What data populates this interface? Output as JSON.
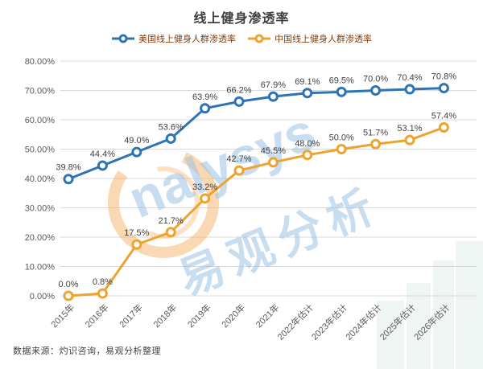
{
  "title": "线上健身渗透率",
  "source": "数据来源：灼识咨询，易观分析整理",
  "watermark": {
    "text_latin": "nalysys",
    "text_cn": "易观分析",
    "text_color": "#9cc3e5",
    "logo_color": "#f4b168"
  },
  "colors": {
    "us_series": "#2e74b5",
    "cn_series": "#efa32f",
    "grid": "#d9d9d9",
    "axis_text": "#595959",
    "data_label": "#3f3f3f",
    "legend_text": "#843c0c",
    "skyline": "#dcebe3"
  },
  "chart_data": {
    "type": "line",
    "title": "线上健身渗透率",
    "categories": [
      "2015年",
      "2016年",
      "2017年",
      "2018年",
      "2019年",
      "2020年",
      "2021年",
      "2022年估计",
      "2023年估计",
      "2024年估计",
      "2025年估计",
      "2026年估计"
    ],
    "series": [
      {
        "name": "美国线上健身人群渗透率",
        "color": "#2e74b5",
        "values": [
          39.8,
          44.4,
          49.0,
          53.6,
          63.9,
          66.2,
          67.9,
          69.1,
          69.5,
          70.0,
          70.4,
          70.8
        ]
      },
      {
        "name": "中国线上健身人群渗透率",
        "color": "#efa32f",
        "values": [
          0.0,
          0.8,
          17.5,
          21.7,
          33.2,
          42.7,
          45.5,
          48.0,
          50.0,
          51.7,
          53.1,
          57.4
        ]
      }
    ],
    "xlabel": "",
    "ylabel": "",
    "ylim": [
      0,
      80
    ],
    "ytick_step": 10,
    "yticks": [
      "0.00%",
      "10.00%",
      "20.00%",
      "30.00%",
      "40.00%",
      "50.00%",
      "60.00%",
      "70.00%",
      "80.00%"
    ],
    "data_label_format": "one-decimal-percent",
    "grid": true,
    "legend_position": "top"
  }
}
